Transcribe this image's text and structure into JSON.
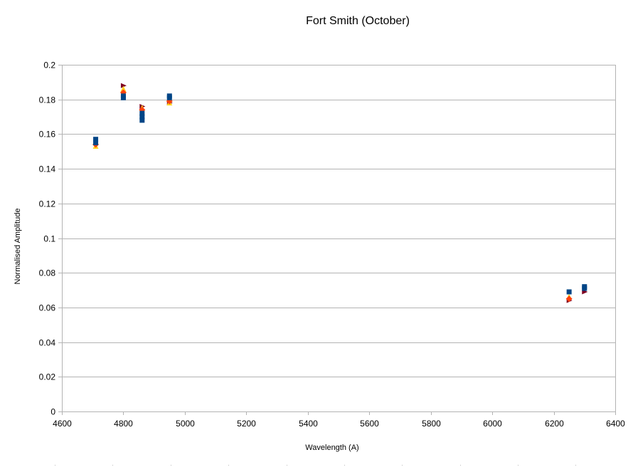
{
  "chart_data": {
    "type": "scatter",
    "title": "Fort Smith (October)",
    "xlabel": "Wavelength (A)",
    "ylabel": "Normalised Amplitude",
    "xlim": [
      4600,
      6400
    ],
    "ylim": [
      0,
      0.2
    ],
    "xticks": [
      4600,
      4800,
      5000,
      5200,
      5400,
      5600,
      5800,
      6000,
      6200,
      6400
    ],
    "yticks": [
      0,
      0.02,
      0.04,
      0.06,
      0.08,
      0.1,
      0.12,
      0.14,
      0.16,
      0.18,
      0.2
    ],
    "xtick_labels": [
      "4600",
      "4800",
      "5000",
      "5200",
      "5400",
      "5600",
      "5800",
      "6000",
      "6200",
      "6400"
    ],
    "ytick_labels": [
      "0",
      "0.02",
      "0.04",
      "0.06",
      "0.08",
      "0.1",
      "0.12",
      "0.14",
      "0.16",
      "0.18",
      "0.2"
    ],
    "grid": "horizontal",
    "legend": "none",
    "series": [
      {
        "marker": "square",
        "color": "#004586",
        "x": [
          4710,
          4710,
          4800,
          4800,
          4861,
          4861,
          4861,
          4950,
          4950,
          6250,
          6300,
          6300
        ],
        "y": [
          0.157,
          0.155,
          0.182,
          0.181,
          0.172,
          0.17,
          0.168,
          0.182,
          0.181,
          0.069,
          0.072,
          0.071
        ]
      },
      {
        "marker": "diamond",
        "color": "#ff420e",
        "x": [
          4710,
          4800,
          4861,
          4950,
          6250
        ],
        "y": [
          0.154,
          0.184,
          0.174,
          0.179,
          0.065
        ]
      },
      {
        "marker": "triangle-up",
        "color": "#ffd320",
        "x": [
          4710,
          4800,
          4861,
          4950,
          6250
        ],
        "y": [
          0.153,
          0.186,
          0.175,
          0.178,
          0.066
        ]
      },
      {
        "marker": "triangle-right",
        "color": "#7e0021",
        "x": [
          4800,
          4861,
          4950,
          6250,
          6300
        ],
        "y": [
          0.188,
          0.176,
          0.178,
          0.064,
          0.069
        ]
      }
    ]
  }
}
